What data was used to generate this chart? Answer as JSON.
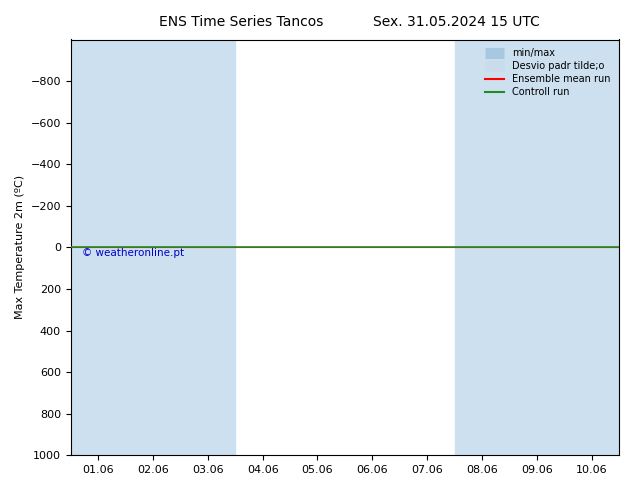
{
  "title_left": "ENS Time Series Tancos",
  "title_right": "Sex. 31.05.2024 15 UTC",
  "ylabel": "Max Temperature 2m (ºC)",
  "ylim": [
    -1000,
    1000
  ],
  "yticks": [
    -800,
    -600,
    -400,
    -200,
    0,
    200,
    400,
    600,
    800,
    1000
  ],
  "xtick_labels": [
    "01.06",
    "02.06",
    "03.06",
    "04.06",
    "05.06",
    "06.06",
    "07.06",
    "08.06",
    "09.06",
    "10.06"
  ],
  "shaded_indices": [
    0,
    1,
    2,
    7,
    8,
    9
  ],
  "shaded_color": "#cce0f0",
  "background_color": "#ffffff",
  "line_color_ensemble": "#ff0000",
  "line_color_control": "#228B22",
  "watermark": "© weatheronline.pt",
  "watermark_color": "#0000cc",
  "legend_labels": [
    "min/max",
    "Desvio padr tilde;o",
    "Ensemble mean run",
    "Controll run"
  ],
  "legend_line_colors": [
    "#a8c8e0",
    "#c8dcea",
    "#ff0000",
    "#228B22"
  ],
  "title_fontsize": 10,
  "axis_fontsize": 8,
  "tick_fontsize": 8
}
